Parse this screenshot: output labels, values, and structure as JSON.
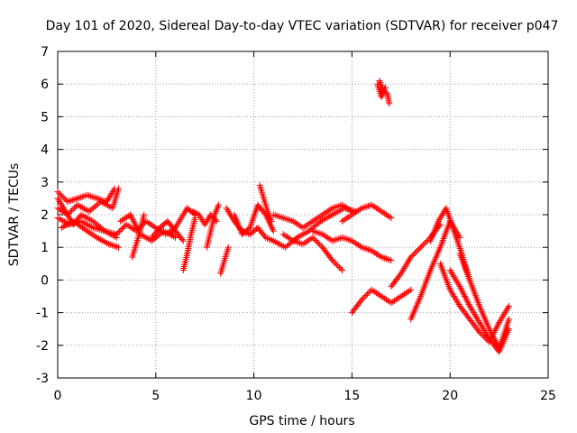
{
  "chart_data": {
    "type": "scatter",
    "title": "Day 101 of 2020, Sidereal Day-to-day VTEC variation (SDTVAR) for receiver p047",
    "xlabel": "GPS time / hours",
    "ylabel": "SDTVAR / TECUs",
    "xlim": [
      0,
      25
    ],
    "ylim": [
      -3,
      7
    ],
    "xticks": [
      0,
      5,
      10,
      15,
      20,
      25
    ],
    "xtick_labels": [
      "0",
      "5",
      "10",
      "15",
      "20",
      "25"
    ],
    "yticks": [
      -3,
      -2,
      -1,
      0,
      1,
      2,
      3,
      4,
      5,
      6,
      7
    ],
    "ytick_labels": [
      "-3",
      "-2",
      "-1",
      "0",
      "1",
      "2",
      "3",
      "4",
      "5",
      "6",
      "7"
    ],
    "grid": true,
    "marker": "+",
    "series": [
      {
        "name": "SDTVAR",
        "color": "#ff0000",
        "tracks": [
          {
            "x": [
              0.0,
              0.5,
              1.0,
              1.5,
              2.0,
              2.5,
              2.9
            ],
            "y": [
              2.7,
              2.4,
              2.5,
              2.6,
              2.5,
              2.4,
              2.8
            ]
          },
          {
            "x": [
              0.0,
              0.5,
              1.0,
              1.6,
              2.2,
              2.8,
              3.1
            ],
            "y": [
              2.2,
              2.0,
              2.3,
              2.1,
              2.4,
              2.2,
              2.8
            ]
          },
          {
            "x": [
              0.0,
              0.6,
              1.2,
              1.8,
              2.4,
              3.0
            ],
            "y": [
              1.9,
              1.7,
              1.8,
              1.6,
              1.5,
              1.3
            ]
          },
          {
            "x": [
              0.0,
              0.4,
              0.8,
              1.2,
              1.8,
              2.4,
              3.0
            ],
            "y": [
              2.5,
              2.1,
              1.7,
              2.0,
              1.8,
              1.5,
              1.4
            ]
          },
          {
            "x": [
              0.2,
              0.8,
              1.5,
              2.0,
              2.6,
              3.1
            ],
            "y": [
              1.6,
              1.8,
              1.5,
              1.3,
              1.1,
              1.0
            ]
          },
          {
            "x": [
              3.0,
              3.5,
              4.0,
              4.5,
              5.0,
              5.5,
              6.0
            ],
            "y": [
              1.4,
              1.7,
              1.5,
              1.8,
              1.6,
              1.4,
              1.6
            ]
          },
          {
            "x": [
              3.2,
              3.7,
              4.2,
              4.8,
              5.4,
              6.0
            ],
            "y": [
              1.8,
              2.0,
              1.4,
              1.2,
              1.5,
              1.3
            ]
          },
          {
            "x": [
              3.8,
              4.0,
              4.2,
              4.4
            ],
            "y": [
              0.7,
              1.1,
              1.5,
              2.0
            ]
          },
          {
            "x": [
              4.8,
              5.2,
              5.6,
              6.0,
              6.4
            ],
            "y": [
              1.3,
              1.6,
              1.8,
              1.5,
              1.2
            ]
          },
          {
            "x": [
              5.8,
              6.2,
              6.6,
              7.0
            ],
            "y": [
              1.4,
              1.8,
              2.2,
              2.0
            ]
          },
          {
            "x": [
              6.4,
              6.6,
              6.8,
              7.0
            ],
            "y": [
              0.3,
              0.8,
              1.4,
              1.9
            ]
          },
          {
            "x": [
              6.9,
              7.2,
              7.5,
              7.8,
              8.1
            ],
            "y": [
              2.1,
              2.0,
              1.7,
              2.0,
              1.8
            ]
          },
          {
            "x": [
              7.6,
              7.8,
              8.0,
              8.2
            ],
            "y": [
              1.0,
              1.5,
              2.0,
              2.3
            ]
          },
          {
            "x": [
              8.3,
              8.5,
              8.7
            ],
            "y": [
              0.2,
              0.6,
              1.0
            ]
          },
          {
            "x": [
              8.6,
              9.0,
              9.4,
              9.8,
              10.2,
              10.6,
              11.0
            ],
            "y": [
              2.2,
              1.8,
              1.5,
              1.4,
              1.6,
              1.3,
              1.2
            ]
          },
          {
            "x": [
              9.0,
              9.4,
              9.8,
              10.2,
              10.6,
              11.0
            ],
            "y": [
              2.0,
              1.4,
              1.6,
              2.3,
              2.0,
              1.5
            ]
          },
          {
            "x": [
              10.3,
              10.5,
              10.7,
              10.9
            ],
            "y": [
              2.9,
              2.5,
              2.1,
              1.8
            ]
          },
          {
            "x": [
              11.0,
              11.5,
              12.0,
              12.5,
              13.0,
              13.5,
              14.0,
              14.5,
              15.0
            ],
            "y": [
              2.0,
              1.9,
              1.8,
              1.6,
              1.8,
              2.0,
              2.2,
              2.3,
              2.1
            ]
          },
          {
            "x": [
              11.0,
              11.6,
              12.2,
              12.8,
              13.4,
              14.0,
              14.6,
              15.2
            ],
            "y": [
              1.2,
              1.0,
              1.3,
              1.5,
              1.8,
              2.0,
              2.2,
              2.1
            ]
          },
          {
            "x": [
              11.5,
              12.0,
              12.5,
              13.0,
              13.5,
              14.0,
              14.5
            ],
            "y": [
              1.4,
              1.2,
              1.1,
              1.3,
              1.0,
              0.6,
              0.3
            ]
          },
          {
            "x": [
              13.0,
              13.5,
              14.0,
              14.5,
              15.0,
              15.5,
              16.0,
              16.5,
              17.0
            ],
            "y": [
              1.5,
              1.4,
              1.2,
              1.3,
              1.2,
              1.0,
              0.9,
              0.7,
              0.6
            ]
          },
          {
            "x": [
              14.5,
              15.0,
              15.5,
              16.0,
              16.5,
              17.0
            ],
            "y": [
              1.8,
              2.0,
              2.2,
              2.3,
              2.1,
              1.9
            ]
          },
          {
            "x": [
              16.4,
              16.6,
              16.8,
              16.9
            ],
            "y": [
              6.1,
              5.8,
              5.7,
              5.4
            ]
          },
          {
            "x": [
              16.3,
              16.5,
              16.7
            ],
            "y": [
              6.0,
              5.6,
              5.9
            ]
          },
          {
            "x": [
              15.0,
              15.5,
              16.0,
              16.5,
              17.0,
              17.5,
              18.0
            ],
            "y": [
              -1.0,
              -0.6,
              -0.3,
              -0.5,
              -0.7,
              -0.5,
              -0.3
            ]
          },
          {
            "x": [
              17.0,
              17.5,
              18.0,
              18.5,
              19.0,
              19.5
            ],
            "y": [
              -0.2,
              0.2,
              0.7,
              1.0,
              1.3,
              1.7
            ]
          },
          {
            "x": [
              18.0,
              18.5,
              19.0,
              19.5,
              20.0,
              20.5
            ],
            "y": [
              -1.2,
              -0.5,
              0.3,
              1.0,
              1.8,
              1.3
            ]
          },
          {
            "x": [
              19.0,
              19.4,
              19.8,
              20.2,
              20.6,
              21.0
            ],
            "y": [
              1.2,
              1.8,
              2.2,
              1.5,
              0.8,
              0.0
            ]
          },
          {
            "x": [
              19.5,
              20.0,
              20.5,
              21.0,
              21.5,
              22.0,
              22.5,
              23.0
            ],
            "y": [
              0.5,
              -0.3,
              -0.8,
              -1.2,
              -1.6,
              -1.9,
              -1.3,
              -0.8
            ]
          },
          {
            "x": [
              20.0,
              20.5,
              21.0,
              21.5,
              22.0,
              22.5,
              23.0
            ],
            "y": [
              0.3,
              -0.2,
              -0.8,
              -1.3,
              -1.8,
              -2.2,
              -1.5
            ]
          },
          {
            "x": [
              20.5,
              21.0,
              21.5,
              22.0,
              22.5,
              23.0
            ],
            "y": [
              0.8,
              0.0,
              -0.8,
              -1.5,
              -2.1,
              -1.2
            ]
          }
        ]
      }
    ]
  }
}
